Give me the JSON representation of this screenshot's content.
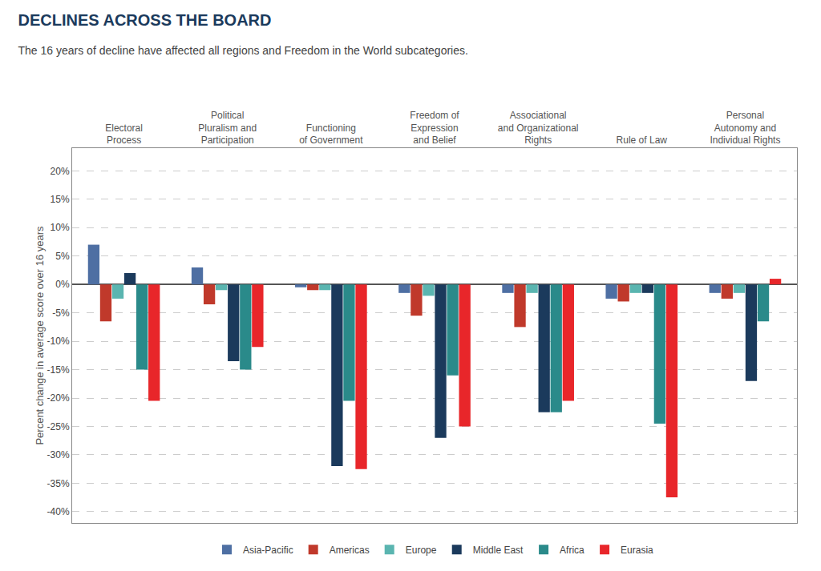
{
  "chart_data": {
    "type": "bar",
    "title": "DECLINES ACROSS THE BOARD",
    "subtitle": "The 16 years of decline have affected all regions and Freedom in the World subcategories.",
    "ylabel": "Percent change in average score over 16 years",
    "categories": [
      "Electoral\nProcess",
      "Political\nPluralism and\nParticipation",
      "Functioning\nof Government",
      "Freedom of\nExpression\nand Belief",
      "Associational\nand Organizational\nRights",
      "Rule of Law",
      "Personal\nAutonomy and\nIndividual Rights"
    ],
    "series": [
      {
        "name": "Asia-Pacific",
        "color": "#4e6fa3",
        "values": [
          7.0,
          3.0,
          -0.5,
          -1.5,
          -1.5,
          -2.5,
          -1.5
        ]
      },
      {
        "name": "Americas",
        "color": "#c0392b",
        "values": [
          -6.5,
          -3.5,
          -1.0,
          -5.5,
          -7.5,
          -3.0,
          -2.5
        ]
      },
      {
        "name": "Europe",
        "color": "#5ab5b0",
        "values": [
          -2.5,
          -1.0,
          -1.0,
          -2.0,
          -1.5,
          -1.5,
          -1.5
        ]
      },
      {
        "name": "Middle East",
        "color": "#1b3a5c",
        "values": [
          2.0,
          -13.5,
          -32.0,
          -27.0,
          -22.5,
          -1.5,
          -17.0
        ]
      },
      {
        "name": "Africa",
        "color": "#2a8a8a",
        "values": [
          -15.0,
          -15.0,
          -20.5,
          -16.0,
          -22.5,
          -24.5,
          -6.5
        ]
      },
      {
        "name": "Eurasia",
        "color": "#e8262a",
        "values": [
          -20.5,
          -11.0,
          -32.5,
          -25.0,
          -20.5,
          -37.5,
          1.0
        ]
      }
    ],
    "ylim": [
      -42,
      24
    ],
    "yticks": [
      {
        "value": -40,
        "label": "-40%"
      },
      {
        "value": -35,
        "label": "-35%"
      },
      {
        "value": -30,
        "label": "-30%"
      },
      {
        "value": -25,
        "label": "-25%"
      },
      {
        "value": -20,
        "label": "-20%"
      },
      {
        "value": -15,
        "label": "-15%"
      },
      {
        "value": -10,
        "label": "-10%"
      },
      {
        "value": -5,
        "label": "-5%"
      },
      {
        "value": 0,
        "label": "0%"
      },
      {
        "value": 5,
        "label": "5%"
      },
      {
        "value": 10,
        "label": "10%"
      },
      {
        "value": 15,
        "label": "15%"
      },
      {
        "value": 20,
        "label": "20%"
      }
    ],
    "grid": true,
    "legend": "bottom"
  }
}
